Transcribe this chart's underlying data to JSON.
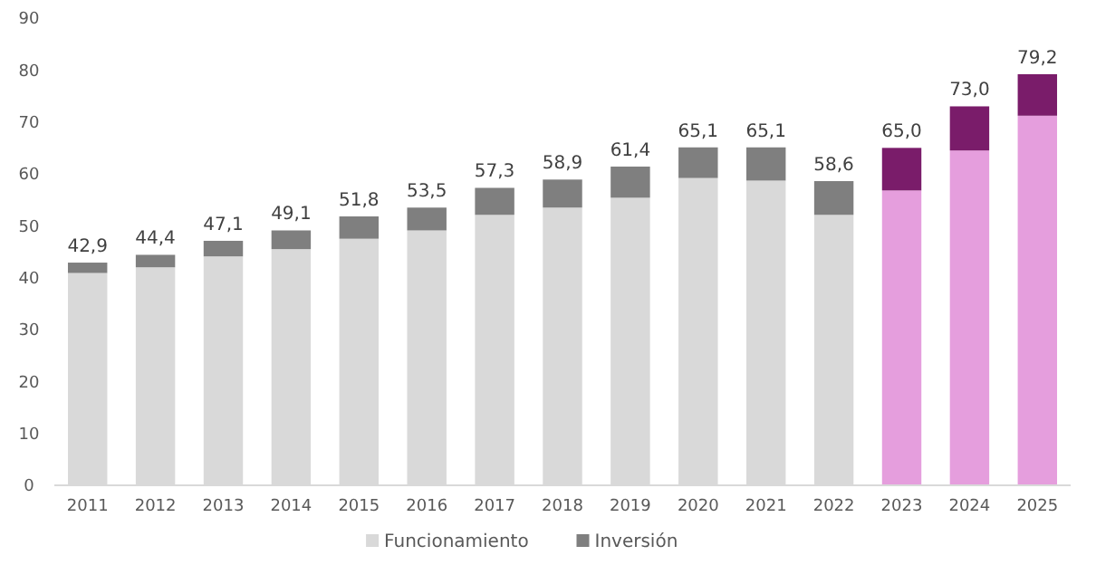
{
  "chart_data": {
    "type": "bar",
    "stacked": true,
    "categories": [
      "2011",
      "2012",
      "2013",
      "2014",
      "2015",
      "2016",
      "2017",
      "2018",
      "2019",
      "2020",
      "2021",
      "2022",
      "2023",
      "2024",
      "2025"
    ],
    "series": [
      {
        "name": "Funcionamiento",
        "color": "#d9d9d9",
        "colors": [
          "#d9d9d9",
          "#d9d9d9",
          "#d9d9d9",
          "#d9d9d9",
          "#d9d9d9",
          "#d9d9d9",
          "#d9d9d9",
          "#d9d9d9",
          "#d9d9d9",
          "#d9d9d9",
          "#d9d9d9",
          "#d9d9d9",
          "#e59edd",
          "#e59edd",
          "#e59edd"
        ],
        "values": [
          40.9,
          42.0,
          44.1,
          45.5,
          47.5,
          49.1,
          52.1,
          53.5,
          55.4,
          59.2,
          58.7,
          52.1,
          56.8,
          64.5,
          71.2
        ]
      },
      {
        "name": "Inversión",
        "color": "#7f7f7f",
        "colors": [
          "#7f7f7f",
          "#7f7f7f",
          "#7f7f7f",
          "#7f7f7f",
          "#7f7f7f",
          "#7f7f7f",
          "#7f7f7f",
          "#7f7f7f",
          "#7f7f7f",
          "#7f7f7f",
          "#7f7f7f",
          "#7f7f7f",
          "#7a1c6a",
          "#7a1c6a",
          "#7a1c6a"
        ],
        "values": [
          2.0,
          2.4,
          3.0,
          3.6,
          4.3,
          4.4,
          5.2,
          5.4,
          6.0,
          5.9,
          6.4,
          6.5,
          8.2,
          8.5,
          8.0
        ]
      }
    ],
    "totals": [
      "42,9",
      "44,4",
      "47,1",
      "49,1",
      "51,8",
      "53,5",
      "57,3",
      "58,9",
      "61,4",
      "65,1",
      "65,1",
      "58,6",
      "65,0",
      "73,0",
      "79,2"
    ],
    "ylim": [
      0,
      90
    ],
    "yticks": [
      0,
      10,
      20,
      30,
      40,
      50,
      60,
      70,
      80,
      90
    ],
    "legend": "bottom"
  }
}
